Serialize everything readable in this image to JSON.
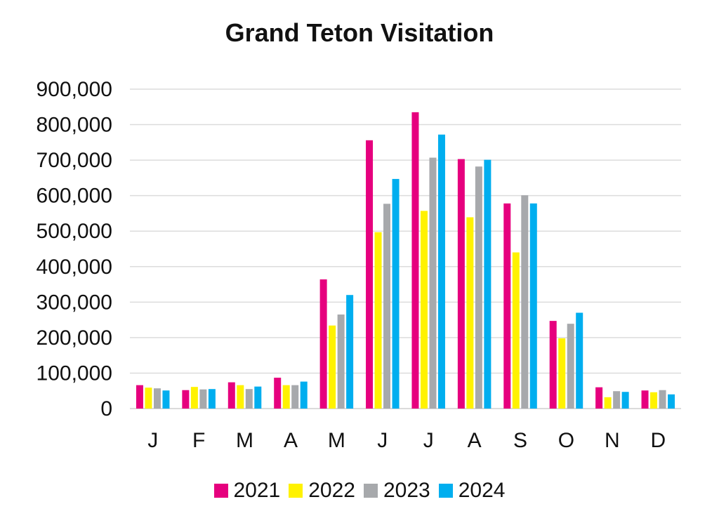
{
  "chart_data": {
    "type": "bar",
    "title": "Grand Teton Visitation",
    "xlabel": "",
    "ylabel": "",
    "ylim": [
      0,
      900000
    ],
    "yticks": [
      0,
      100000,
      200000,
      300000,
      400000,
      500000,
      600000,
      700000,
      800000,
      900000
    ],
    "ytick_labels": [
      "0",
      "100,000",
      "200,000",
      "300,000",
      "400,000",
      "500,000",
      "600,000",
      "700,000",
      "800,000",
      "900,000"
    ],
    "categories": [
      "J",
      "F",
      "M",
      "A",
      "M",
      "J",
      "J",
      "A",
      "S",
      "O",
      "N",
      "D"
    ],
    "grid": true,
    "legend_position": "bottom",
    "series": [
      {
        "name": "2021",
        "color": "#e6007e",
        "values": [
          66000,
          52000,
          74000,
          87000,
          364000,
          756000,
          835000,
          703000,
          578000,
          247000,
          60000,
          51000
        ]
      },
      {
        "name": "2022",
        "color": "#fff200",
        "values": [
          59000,
          61000,
          66000,
          66000,
          234000,
          497000,
          557000,
          539000,
          440000,
          198000,
          32000,
          46000
        ]
      },
      {
        "name": "2023",
        "color": "#a7a9ac",
        "values": [
          57000,
          54000,
          55000,
          66000,
          265000,
          577000,
          707000,
          682000,
          601000,
          239000,
          49000,
          52000
        ]
      },
      {
        "name": "2024",
        "color": "#00aeef",
        "values": [
          51000,
          55000,
          62000,
          76000,
          320000,
          647000,
          772000,
          701000,
          578000,
          270000,
          47000,
          40000
        ]
      }
    ]
  }
}
